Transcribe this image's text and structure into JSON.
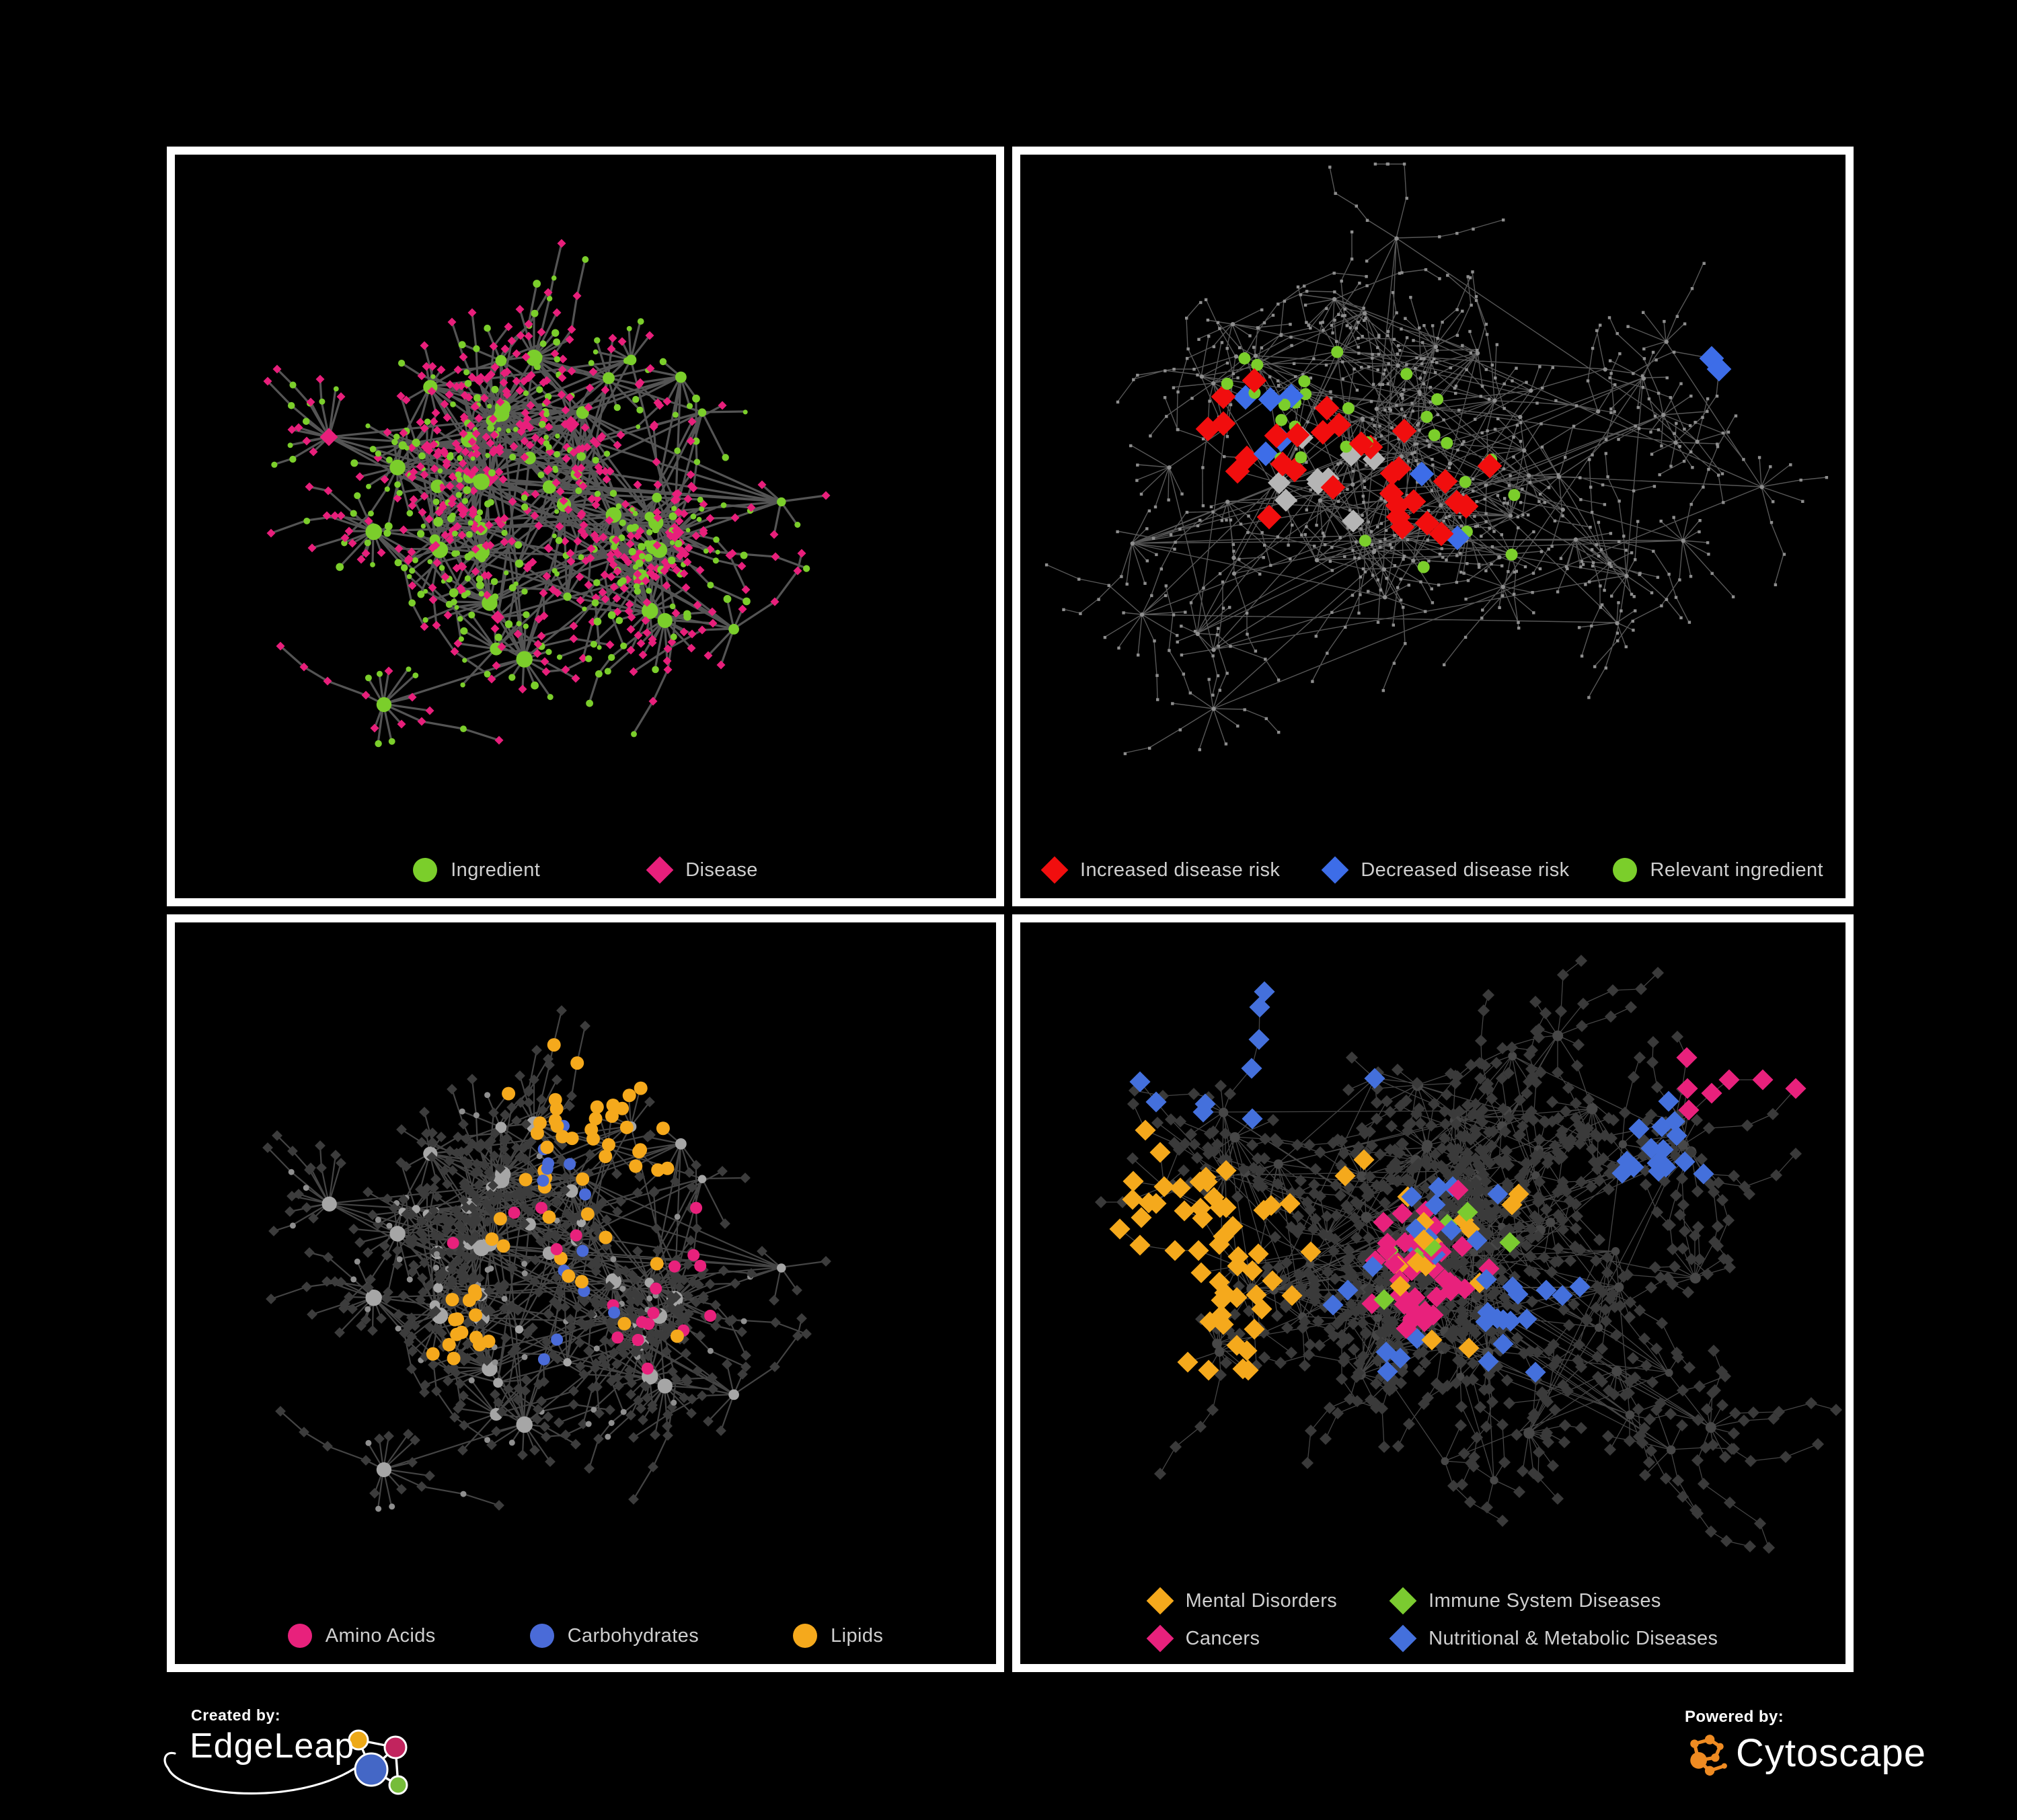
{
  "canvas": {
    "background": "#000000",
    "panel_border_color": "#ffffff"
  },
  "panels": [
    {
      "id": "ingredient-disease-network",
      "edge_color": "#6B6B6B",
      "legend": [
        {
          "label": "Ingredient",
          "shape": "circle",
          "color": "#7BCE2B"
        },
        {
          "label": "Disease",
          "shape": "diamond",
          "color": "#E81F7B"
        }
      ]
    },
    {
      "id": "disease-risk-network",
      "edge_color": "#5C5C5C",
      "node_color": "#8E8E8E",
      "neutral_highlight": "#B5B5B5",
      "legend": [
        {
          "label": "Increased disease risk",
          "shape": "diamond",
          "color": "#F10E0E"
        },
        {
          "label": "Decreased disease risk",
          "shape": "diamond",
          "color": "#3D6DE8"
        },
        {
          "label": "Relevant ingredient",
          "shape": "circle",
          "color": "#7BCE2B"
        }
      ]
    },
    {
      "id": "nutrient-class-network",
      "edge_color": "#555555",
      "hub_color": "#A6A6A6",
      "leaf_color": "#3C3C3C",
      "legend": [
        {
          "label": "Amino Acids",
          "shape": "circle",
          "color": "#E8217C"
        },
        {
          "label": "Carbohydrates",
          "shape": "circle",
          "color": "#4A6BD8"
        },
        {
          "label": "Lipids",
          "shape": "circle",
          "color": "#F5A91C"
        }
      ]
    },
    {
      "id": "disease-class-network",
      "edge_color": "#4F4F4F",
      "hub_color": "#474747",
      "leaf_color": "#3A3A3A",
      "legend": [
        {
          "label": "Mental Disorders",
          "shape": "diamond",
          "color": "#F5A91C"
        },
        {
          "label": "Immune System Diseases",
          "shape": "diamond",
          "color": "#7BCB30"
        },
        {
          "label": "Cancers",
          "shape": "diamond",
          "color": "#E8217C"
        },
        {
          "label": "Nutritional & Metabolic Diseases",
          "shape": "diamond",
          "color": "#4470DC"
        }
      ]
    }
  ],
  "footer": {
    "created_by": {
      "label": "Created by:",
      "brand": "EdgeLeap"
    },
    "powered_by": {
      "label": "Powered by:",
      "brand": "Cytoscape",
      "brand_icon_color": "#EF8B22"
    },
    "edgeleap_icon_colors": {
      "yellow": "#EDA918",
      "pink": "#C1245E",
      "blue": "#4467C6",
      "green": "#76BC3A"
    }
  }
}
